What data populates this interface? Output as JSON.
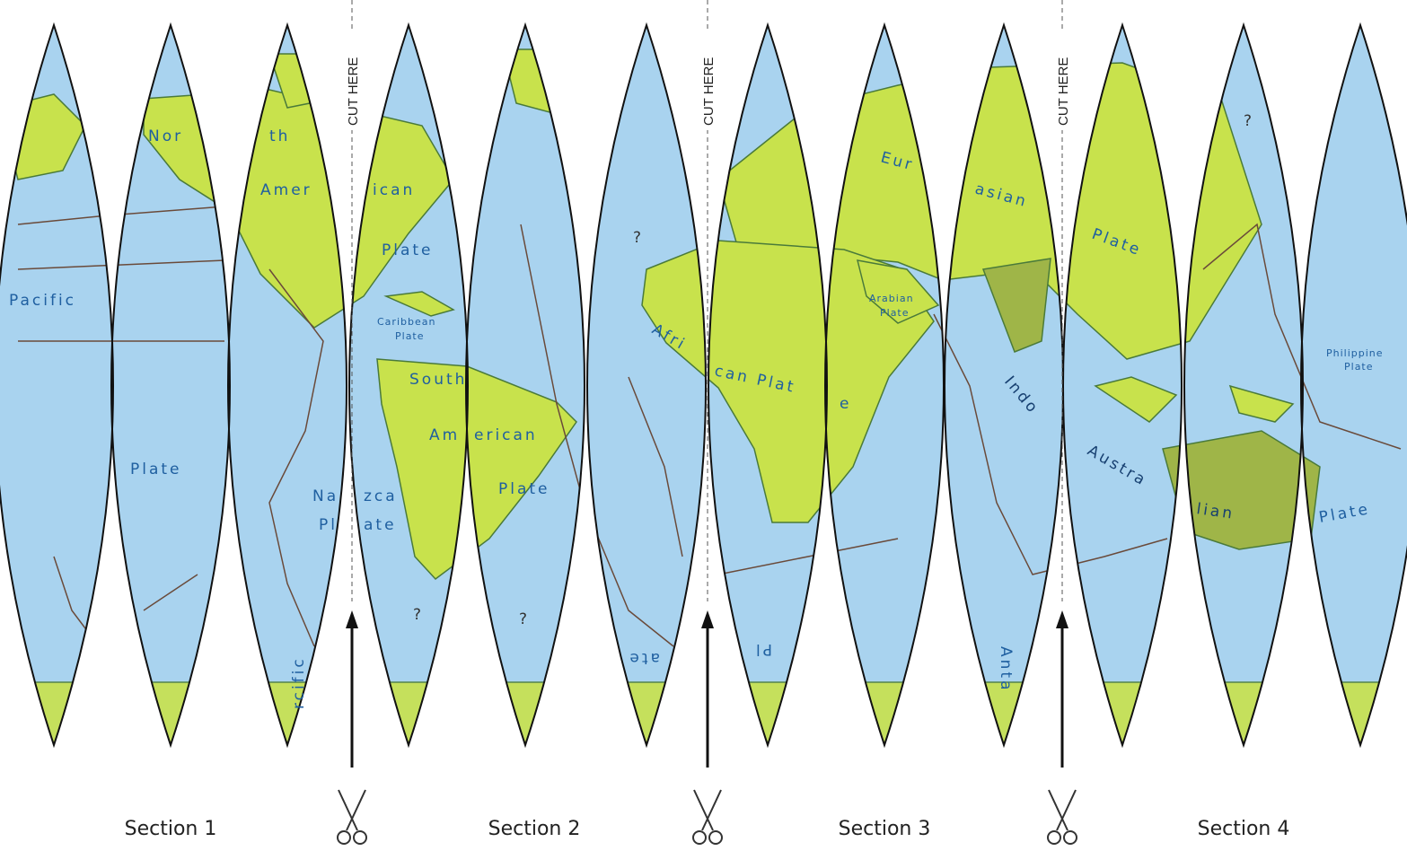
{
  "labels": {
    "pacific": "Pacific",
    "pacific_plate": "Plate",
    "pacific_fragment": "rcific",
    "north_a": "Nor",
    "north_b": "th",
    "amer_a": "Amer",
    "amer_b": "ican",
    "na_plate": "Plate",
    "caribbean": "Caribbean",
    "caribbean_plate": "Plate",
    "nazca_a": "Na",
    "nazca_b": "zca",
    "nazca_plate_a": "Pl",
    "nazca_plate_b": "ate",
    "south": "South",
    "sa_a": "Am",
    "sa_b": "erican",
    "sa_plate": "Plate",
    "afri": "Afri",
    "can_plat": "can Plat",
    "e": "e",
    "af_ate": "ate",
    "af_pl": "Pl",
    "eur": "Eur",
    "asian": "asian",
    "eu_plate": "Plate",
    "arabian": "Arabian",
    "arabian_plate": "Plate",
    "indo": "Indo",
    "austra": "Austra",
    "lian": "lian",
    "ia_plate": "Plate",
    "anta": "Anta",
    "philippine": "Philippine",
    "philippine_plate": "Plate",
    "q1": "?",
    "q2": "?",
    "q3": "?",
    "q4": "?"
  },
  "cut_lines": [
    "CUT HERE",
    "CUT HERE",
    "CUT HERE"
  ],
  "sections": [
    "Section 1",
    "Section 2",
    "Section 3",
    "Section 4"
  ]
}
